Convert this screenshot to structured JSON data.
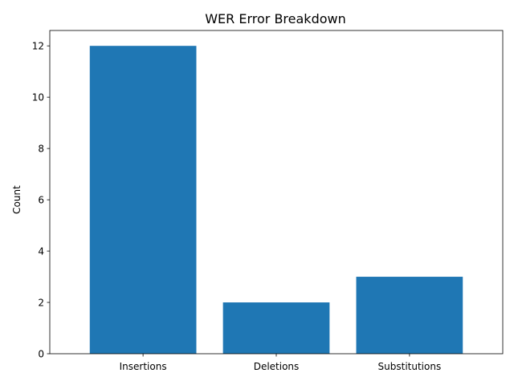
{
  "chart_data": {
    "type": "bar",
    "title": "WER Error Breakdown",
    "xlabel": "",
    "ylabel": "Count",
    "categories": [
      "Insertions",
      "Deletions",
      "Substitutions"
    ],
    "values": [
      12,
      2,
      3
    ],
    "ylim": [
      0,
      12.6
    ],
    "yticks": [
      0,
      2,
      4,
      6,
      8,
      10,
      12
    ],
    "grid": false,
    "legend": "none",
    "bar_color": "#1f77b4"
  }
}
